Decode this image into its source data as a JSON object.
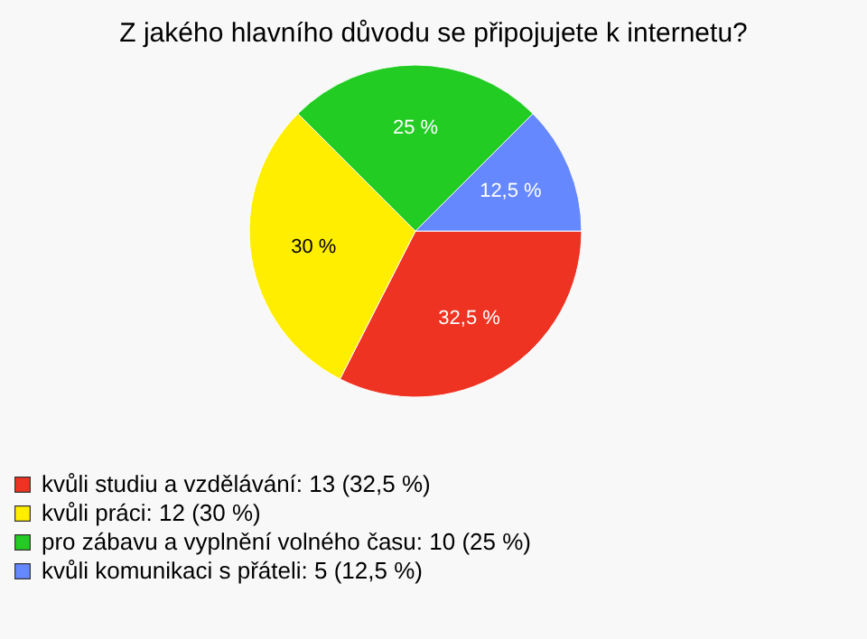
{
  "chart_data": {
    "type": "pie",
    "title": "Z jakého hlavního důvodu se připojujete k internetu?",
    "categories": [
      "kvůli studiu a vzdělávání: 13 (32,5 %)",
      "kvůli práci: 12 (30 %)",
      "pro zábavu a vyplnění volného času: 10 (25 %)",
      "kvůli komunikaci s přáteli: 5 (12,5 %)"
    ],
    "values": [
      32.5,
      30,
      25,
      12.5
    ],
    "value_labels": [
      "32,5 %",
      "30 %",
      "25 %",
      "12,5 %"
    ],
    "colors": [
      "#ee3322",
      "#ffee00",
      "#22cc22",
      "#6688ff"
    ],
    "legend": "bottom left"
  }
}
